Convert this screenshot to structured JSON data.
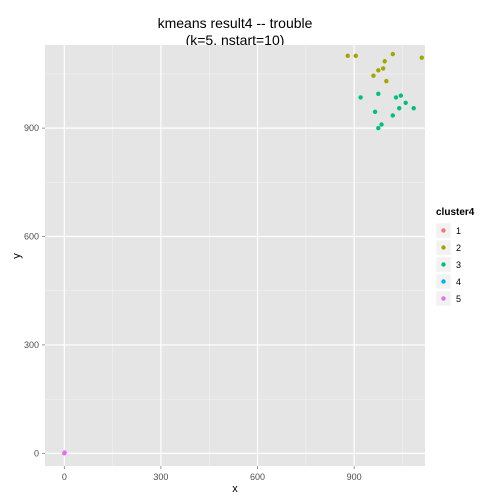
{
  "chart_data": {
    "type": "scatter",
    "title_line1": "kmeans result4 -- trouble",
    "title_line2": "(k=5, nstart=10)",
    "xlabel": "x",
    "ylabel": "y",
    "xlim": [
      -60,
      1120
    ],
    "ylim": [
      -35,
      1130
    ],
    "x_ticks": [
      0,
      300,
      600,
      900
    ],
    "y_ticks": [
      0,
      300,
      600,
      900
    ],
    "x_tick_labels": [
      "0",
      "300",
      "600",
      "900"
    ],
    "y_tick_labels": [
      "0",
      "300",
      "600",
      "900"
    ],
    "grid": true,
    "legend_title": "cluster4",
    "legend_position": "right",
    "series": [
      {
        "name": "1",
        "color": "#F8766D",
        "points": []
      },
      {
        "name": "2",
        "color": "#A3A500",
        "points": [
          [
            880,
            1100
          ],
          [
            905,
            1100
          ],
          [
            1020,
            1105
          ],
          [
            1110,
            1095
          ],
          [
            995,
            1085
          ],
          [
            990,
            1065
          ],
          [
            975,
            1060
          ],
          [
            960,
            1045
          ],
          [
            1000,
            1030
          ]
        ]
      },
      {
        "name": "3",
        "color": "#00BF7D",
        "points": [
          [
            920,
            985
          ],
          [
            975,
            995
          ],
          [
            1030,
            985
          ],
          [
            1045,
            990
          ],
          [
            1060,
            970
          ],
          [
            1040,
            955
          ],
          [
            1085,
            955
          ],
          [
            965,
            945
          ],
          [
            1020,
            935
          ],
          [
            985,
            910
          ],
          [
            975,
            900
          ]
        ]
      },
      {
        "name": "4",
        "color": "#00B0F6",
        "points": []
      },
      {
        "name": "5",
        "color": "#E76BF3",
        "points": [
          [
            0,
            0
          ],
          [
            1,
            2
          ]
        ]
      }
    ]
  }
}
